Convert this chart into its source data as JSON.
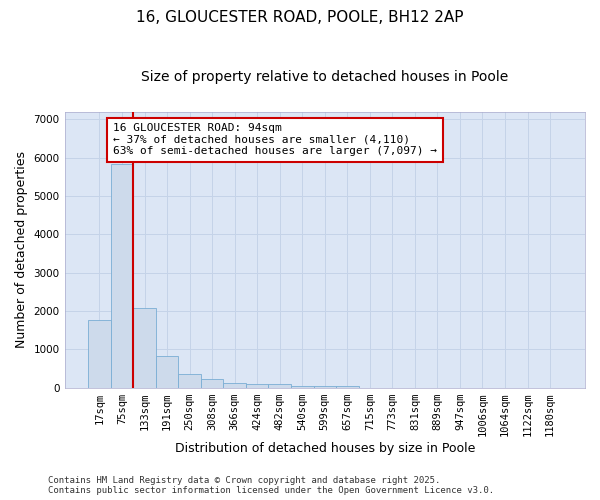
{
  "title": "16, GLOUCESTER ROAD, POOLE, BH12 2AP",
  "subtitle": "Size of property relative to detached houses in Poole",
  "xlabel": "Distribution of detached houses by size in Poole",
  "ylabel": "Number of detached properties",
  "categories": [
    "17sqm",
    "75sqm",
    "133sqm",
    "191sqm",
    "250sqm",
    "308sqm",
    "366sqm",
    "424sqm",
    "482sqm",
    "540sqm",
    "599sqm",
    "657sqm",
    "715sqm",
    "773sqm",
    "831sqm",
    "889sqm",
    "947sqm",
    "1006sqm",
    "1064sqm",
    "1122sqm",
    "1180sqm"
  ],
  "values": [
    1780,
    5830,
    2080,
    820,
    360,
    220,
    130,
    110,
    90,
    55,
    45,
    40,
    0,
    0,
    0,
    0,
    0,
    0,
    0,
    0,
    0
  ],
  "bar_color": "#cddaeb",
  "bar_edge_color": "#7aadd4",
  "vline_x": 1.5,
  "vline_color": "#cc0000",
  "ylim": [
    0,
    7200
  ],
  "yticks": [
    0,
    1000,
    2000,
    3000,
    4000,
    5000,
    6000,
    7000
  ],
  "annotation_text": "16 GLOUCESTER ROAD: 94sqm\n← 37% of detached houses are smaller (4,110)\n63% of semi-detached houses are larger (7,097) →",
  "annotation_box_color": "#cc0000",
  "annotation_box_bg": "#ffffff",
  "grid_color": "#c5d3e8",
  "bg_color": "#dce6f5",
  "fig_bg": "#ffffff",
  "footer": "Contains HM Land Registry data © Crown copyright and database right 2025.\nContains public sector information licensed under the Open Government Licence v3.0.",
  "title_fontsize": 11,
  "subtitle_fontsize": 10,
  "axis_label_fontsize": 9,
  "tick_fontsize": 7.5,
  "annotation_fontsize": 8,
  "footer_fontsize": 6.5
}
